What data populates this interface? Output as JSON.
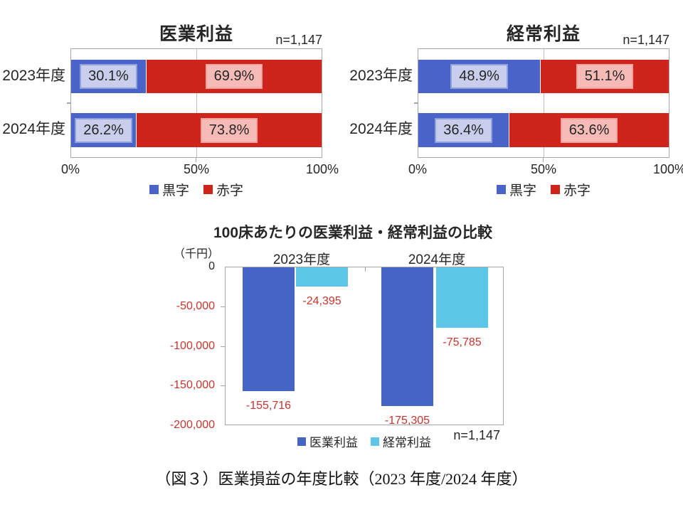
{
  "page": {
    "background": "#ffffff",
    "caption": "（図３）医業損益の年度比較（2023 年度/2024 年度）"
  },
  "colors": {
    "surplus_blue": "#4A63C8",
    "deficit_red": "#CE241B",
    "surplus_chip_bg": "#C8CEEC",
    "deficit_chip_bg": "#F6BBB7",
    "medical_profit_blue": "#4565C4",
    "ordinary_profit_cyan": "#5BC6E8",
    "negative_value_red": "#C9342C",
    "axis_gray": "#A6A6A6"
  },
  "chart_data": [
    {
      "id": "medical-profit-ratio",
      "type": "bar",
      "orientation": "horizontal-stacked",
      "title": "医業利益",
      "n_label": "n=1,147",
      "categories": [
        "2023年度",
        "2024年度"
      ],
      "series": [
        {
          "name": "黒字",
          "color": "#4A63C8",
          "values": [
            30.1,
            26.2
          ],
          "labels": [
            "30.1%",
            "26.2%"
          ]
        },
        {
          "name": "赤字",
          "color": "#CE241B",
          "values": [
            69.9,
            73.8
          ],
          "labels": [
            "69.9%",
            "73.8%"
          ]
        }
      ],
      "xlim": [
        0,
        100
      ],
      "x_ticks": [
        "0%",
        "50%",
        "100%"
      ],
      "grid": "vertical-50pct",
      "legend_position": "bottom"
    },
    {
      "id": "ordinary-profit-ratio",
      "type": "bar",
      "orientation": "horizontal-stacked",
      "title": "経常利益",
      "n_label": "n=1,147",
      "categories": [
        "2023年度",
        "2024年度"
      ],
      "series": [
        {
          "name": "黒字",
          "color": "#4A63C8",
          "values": [
            48.9,
            36.4
          ],
          "labels": [
            "48.9%",
            "36.4%"
          ]
        },
        {
          "name": "赤字",
          "color": "#CE241B",
          "values": [
            51.1,
            63.6
          ],
          "labels": [
            "51.1%",
            "63.6%"
          ]
        }
      ],
      "xlim": [
        0,
        100
      ],
      "x_ticks": [
        "0%",
        "50%",
        "100%"
      ],
      "grid": "vertical-50pct",
      "legend_position": "bottom"
    },
    {
      "id": "per-100-beds-comparison",
      "type": "bar",
      "orientation": "vertical-grouped",
      "title": "100床あたりの医業利益・経常利益の比較",
      "unit_label": "（千円）",
      "n_label": "n=1,147",
      "categories": [
        "2023年度",
        "2024年度"
      ],
      "series": [
        {
          "name": "医業利益",
          "key": "medical-profit",
          "color": "#4565C4",
          "values": [
            -155716,
            -175305
          ],
          "labels": [
            "-155,716",
            "-175,305"
          ]
        },
        {
          "name": "経常利益",
          "key": "ordinary-profit",
          "color": "#5BC6E8",
          "values": [
            -24395,
            -75785
          ],
          "labels": [
            "-24,395",
            "-75,785"
          ]
        }
      ],
      "ylim": [
        -200000,
        0
      ],
      "y_ticks": [
        "0",
        "-50,000",
        "-100,000",
        "-150,000",
        "-200,000"
      ],
      "grid": "off",
      "legend_position": "bottom"
    }
  ]
}
